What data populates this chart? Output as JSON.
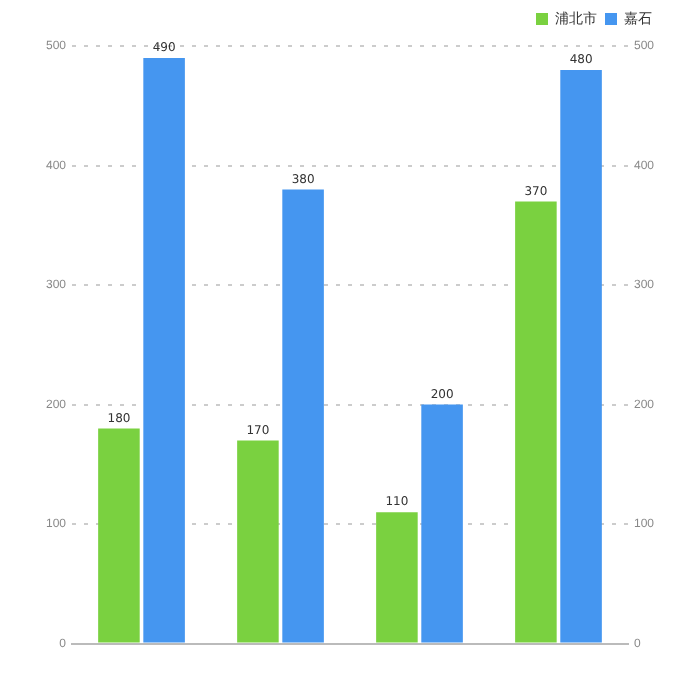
{
  "chart_data": {
    "type": "bar",
    "categories": [
      null,
      null,
      null,
      null
    ],
    "series": [
      {
        "name": "浦北市",
        "color": "#7ad140",
        "values": [
          180,
          170,
          110,
          370
        ]
      },
      {
        "name": "嘉石",
        "color": "#4596f0",
        "values": [
          490,
          380,
          200,
          480
        ]
      }
    ],
    "ylim": [
      0,
      500
    ],
    "yticks": [
      0,
      100,
      200,
      300,
      400,
      500
    ],
    "y2lim": [
      0,
      500
    ],
    "y2ticks": [
      0,
      100,
      200,
      300,
      400,
      500
    ],
    "grid": "y",
    "legend": "top right",
    "data_labels": true
  }
}
